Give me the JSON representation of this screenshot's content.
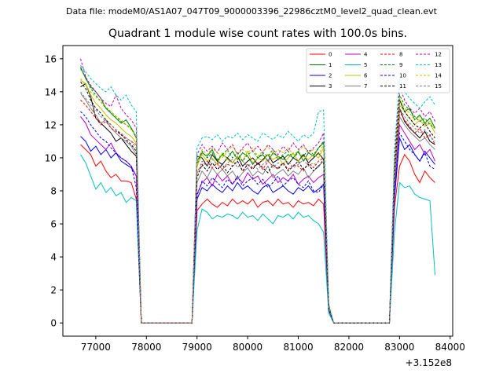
{
  "file_label": "Data file: modeM0/AS1A07_047T09_9000003396_22986cztM0_level2_quad_clean.evt",
  "chart_data": {
    "type": "line",
    "title": "Quadrant 1 module wise count rates with 100.0s bins.",
    "xlabel": "",
    "ylabel": "",
    "x_offset_label": "+3.152e8",
    "xlim": [
      76350,
      84050
    ],
    "ylim": [
      -0.8,
      16.8
    ],
    "xticks": [
      77000,
      78000,
      79000,
      80000,
      81000,
      82000,
      83000,
      84000
    ],
    "yticks": [
      0,
      2,
      4,
      6,
      8,
      10,
      12,
      14,
      16
    ],
    "x": [
      76700,
      76800,
      76900,
      77000,
      77100,
      77200,
      77300,
      77400,
      77500,
      77600,
      77700,
      77800,
      77900,
      78000,
      78900,
      79000,
      79100,
      79200,
      79300,
      79400,
      79500,
      79600,
      79700,
      79800,
      79900,
      80000,
      80100,
      80200,
      80300,
      80400,
      80500,
      80600,
      80700,
      80800,
      80900,
      81000,
      81100,
      81200,
      81300,
      81400,
      81500,
      81600,
      81700,
      81800,
      82800,
      82900,
      83000,
      83100,
      83200,
      83300,
      83400,
      83500,
      83600,
      83700
    ],
    "legend": {
      "location": "upper right",
      "columns": 4
    },
    "series": [
      {
        "name": "0",
        "color": "#ff0000",
        "style": "solid",
        "values": [
          10.8,
          10.5,
          10.2,
          9.5,
          9.8,
          9.2,
          8.8,
          9.0,
          8.6,
          8.6,
          8.5,
          7.5,
          0,
          0,
          0,
          6.8,
          7.2,
          7.5,
          7.2,
          7.0,
          7.3,
          7.1,
          7.5,
          7.2,
          7.4,
          7.2,
          7.5,
          7.0,
          7.3,
          7.4,
          7.1,
          7.5,
          7.2,
          7.3,
          7.0,
          7.4,
          7.2,
          7.3,
          7.1,
          7.5,
          7.2,
          0.8,
          0,
          0,
          0,
          7.0,
          9.5,
          10.2,
          9.8,
          9.0,
          8.5,
          9.2,
          8.8,
          8.5
        ]
      },
      {
        "name": "1",
        "color": "#008000",
        "style": "solid",
        "values": [
          15.5,
          14.8,
          14.3,
          14.0,
          13.6,
          13.0,
          12.7,
          12.4,
          12.1,
          12.3,
          11.8,
          11.2,
          0,
          0,
          0,
          9.8,
          10.3,
          10.1,
          10.5,
          9.8,
          10.2,
          10.0,
          10.4,
          9.9,
          10.3,
          10.1,
          9.6,
          10.0,
          10.2,
          9.8,
          10.3,
          10.1,
          9.9,
          10.2,
          10.0,
          10.4,
          9.8,
          10.3,
          10.1,
          10.6,
          10.9,
          1.0,
          0,
          0,
          0,
          9.5,
          13.5,
          12.8,
          13.0,
          12.3,
          12.6,
          12.1,
          12.4,
          11.8
        ]
      },
      {
        "name": "2",
        "color": "#0000ff",
        "style": "solid",
        "values": [
          11.3,
          11.0,
          10.4,
          10.7,
          10.2,
          10.5,
          10.0,
          10.3,
          9.8,
          9.6,
          9.4,
          8.9,
          0,
          0,
          0,
          7.5,
          8.2,
          8.0,
          8.4,
          8.1,
          7.9,
          8.3,
          8.0,
          8.5,
          8.1,
          8.3,
          8.0,
          7.8,
          8.2,
          8.4,
          7.9,
          8.1,
          8.3,
          8.0,
          7.8,
          8.2,
          8.0,
          8.3,
          7.9,
          8.1,
          8.4,
          0.8,
          0,
          0,
          0,
          7.5,
          11.2,
          10.5,
          10.8,
          10.2,
          9.8,
          10.4,
          10.0,
          9.6
        ]
      },
      {
        "name": "3",
        "color": "#000000",
        "style": "solid",
        "values": [
          14.3,
          14.5,
          13.7,
          12.4,
          12.1,
          11.8,
          11.5,
          11.0,
          11.2,
          10.8,
          10.4,
          10.1,
          0,
          0,
          0,
          10.1,
          10.0,
          9.5,
          10.2,
          9.8,
          9.6,
          10.0,
          9.7,
          10.1,
          9.5,
          9.8,
          10.0,
          9.6,
          9.9,
          10.2,
          9.7,
          9.9,
          10.1,
          9.6,
          10.0,
          9.8,
          10.2,
          9.7,
          10.0,
          10.3,
          9.9,
          0.9,
          0,
          0,
          0,
          8.5,
          13.0,
          12.2,
          11.8,
          11.5,
          11.2,
          11.6,
          11.0,
          10.8
        ]
      },
      {
        "name": "4",
        "color": "#bf00bf",
        "style": "solid",
        "values": [
          12.5,
          12.1,
          11.4,
          11.1,
          10.8,
          10.5,
          10.9,
          10.3,
          10.0,
          9.8,
          9.5,
          8.9,
          0,
          0,
          0,
          7.8,
          8.5,
          8.8,
          8.3,
          9.0,
          8.6,
          8.9,
          8.4,
          8.8,
          8.5,
          9.1,
          8.7,
          8.9,
          8.4,
          8.7,
          9.0,
          8.5,
          8.8,
          8.6,
          9.0,
          8.4,
          8.7,
          8.9,
          8.5,
          8.8,
          9.0,
          0.9,
          0,
          0,
          0,
          8.0,
          12.0,
          11.5,
          11.0,
          10.5,
          10.8,
          10.2,
          10.5,
          9.8
        ]
      },
      {
        "name": "5",
        "color": "#00bfbf",
        "style": "solid",
        "values": [
          10.2,
          9.7,
          8.9,
          8.1,
          8.5,
          7.9,
          8.2,
          7.7,
          7.9,
          7.3,
          7.6,
          7.4,
          0,
          0,
          0,
          5.6,
          6.9,
          6.7,
          6.3,
          6.5,
          6.4,
          6.6,
          6.5,
          6.3,
          6.7,
          6.4,
          6.5,
          6.2,
          6.6,
          6.3,
          6.0,
          6.5,
          6.4,
          6.6,
          6.3,
          6.7,
          6.4,
          6.5,
          6.2,
          6.0,
          5.5,
          0.6,
          0,
          0,
          0,
          5.5,
          8.5,
          8.2,
          8.3,
          7.8,
          7.6,
          7.5,
          7.4,
          2.9
        ]
      },
      {
        "name": "6",
        "color": "#bfbf00",
        "style": "solid",
        "values": [
          14.7,
          14.5,
          13.8,
          13.3,
          13.0,
          12.6,
          12.3,
          12.1,
          11.8,
          11.5,
          11.3,
          10.9,
          0,
          0,
          0,
          9.5,
          10.2,
          9.8,
          10.0,
          9.6,
          10.3,
          9.9,
          9.7,
          10.1,
          9.8,
          10.4,
          9.7,
          10.0,
          9.8,
          10.2,
          9.9,
          10.1,
          9.6,
          10.0,
          10.3,
          9.8,
          10.1,
          9.9,
          10.2,
          10.0,
          10.6,
          1.0,
          0,
          0,
          0,
          9.0,
          13.2,
          12.8,
          12.4,
          12.0,
          12.3,
          11.9,
          12.1,
          11.5
        ]
      },
      {
        "name": "7",
        "color": "#808080",
        "style": "solid",
        "values": [
          13.9,
          13.5,
          13.0,
          12.6,
          12.1,
          12.3,
          11.8,
          11.5,
          11.2,
          11.0,
          10.7,
          10.2,
          0,
          0,
          0,
          8.5,
          9.2,
          8.8,
          9.4,
          9.0,
          9.3,
          8.9,
          9.2,
          8.7,
          9.1,
          9.4,
          8.9,
          9.2,
          9.0,
          9.5,
          8.8,
          9.1,
          9.3,
          8.9,
          9.2,
          9.0,
          9.4,
          8.8,
          9.2,
          9.5,
          9.8,
          0.9,
          0,
          0,
          0,
          8.5,
          12.5,
          12.0,
          11.6,
          11.3,
          11.0,
          11.2,
          10.8,
          10.5
        ]
      },
      {
        "name": "8",
        "color": "#ff0000",
        "style": "dashed",
        "values": [
          13.5,
          13.2,
          12.8,
          12.4,
          12.0,
          12.2,
          11.8,
          11.6,
          11.4,
          11.2,
          11.0,
          10.8,
          0,
          0,
          0,
          9.2,
          9.5,
          9.8,
          9.4,
          9.7,
          9.3,
          9.6,
          9.5,
          9.8,
          9.2,
          9.6,
          9.4,
          9.7,
          9.3,
          9.8,
          9.5,
          9.4,
          9.7,
          9.3,
          9.6,
          9.5,
          9.2,
          9.7,
          9.4,
          9.8,
          10.0,
          1.0,
          0,
          0,
          0,
          8.8,
          12.8,
          12.3,
          11.9,
          11.5,
          11.8,
          11.2,
          11.4,
          10.8
        ]
      },
      {
        "name": "9",
        "color": "#008000",
        "style": "dashed",
        "values": [
          15.4,
          14.9,
          14.2,
          13.8,
          13.4,
          13.0,
          12.8,
          12.5,
          12.2,
          12.0,
          11.8,
          11.3,
          0,
          0,
          0,
          9.6,
          10.4,
          10.0,
          10.3,
          9.9,
          10.2,
          10.5,
          10.0,
          10.3,
          9.8,
          10.2,
          10.4,
          10.0,
          10.3,
          10.1,
          10.5,
          9.9,
          10.2,
          10.4,
          10.0,
          10.3,
          10.1,
          10.5,
          10.2,
          10.6,
          11.0,
          1.0,
          0,
          0,
          0,
          9.5,
          13.8,
          13.2,
          12.9,
          12.5,
          12.2,
          12.4,
          12.0,
          11.8
        ]
      },
      {
        "name": "10",
        "color": "#0000ff",
        "style": "dashed",
        "values": [
          12.8,
          12.5,
          12.0,
          11.6,
          11.2,
          11.0,
          10.6,
          10.3,
          10.0,
          9.8,
          9.5,
          8.2,
          0,
          0,
          0,
          7.7,
          8.6,
          8.3,
          8.8,
          8.5,
          8.2,
          8.7,
          8.4,
          8.9,
          8.3,
          8.6,
          8.8,
          8.4,
          8.7,
          8.2,
          8.5,
          8.9,
          8.3,
          8.6,
          8.8,
          8.4,
          8.2,
          8.6,
          8.0,
          7.9,
          8.4,
          0.8,
          0,
          0,
          0,
          7.8,
          11.5,
          11.0,
          10.5,
          10.2,
          9.8,
          10.3,
          9.5,
          9.3
        ]
      },
      {
        "name": "11",
        "color": "#000000",
        "style": "dashed",
        "values": [
          14.6,
          14.2,
          13.5,
          13.0,
          12.7,
          12.3,
          12.0,
          11.7,
          11.4,
          11.1,
          10.8,
          10.4,
          0,
          0,
          0,
          8.8,
          9.6,
          9.2,
          9.7,
          9.3,
          9.6,
          9.1,
          9.5,
          9.8,
          9.2,
          9.6,
          9.3,
          9.7,
          9.4,
          9.1,
          9.6,
          9.3,
          9.7,
          9.2,
          9.5,
          9.8,
          9.3,
          9.6,
          9.2,
          9.5,
          9.9,
          0.9,
          0,
          0,
          0,
          9.0,
          13.5,
          12.8,
          12.4,
          12.0,
          11.8,
          12.1,
          11.6,
          11.2
        ]
      },
      {
        "name": "12",
        "color": "#bf00bf",
        "style": "dashed",
        "values": [
          16.0,
          14.9,
          14.4,
          14.0,
          13.6,
          13.3,
          13.1,
          13.8,
          13.0,
          12.6,
          12.3,
          11.8,
          0,
          0,
          0,
          10.2,
          10.8,
          10.4,
          10.7,
          10.3,
          10.9,
          10.5,
          10.8,
          10.2,
          10.6,
          10.9,
          10.4,
          10.7,
          10.3,
          10.8,
          10.5,
          10.2,
          10.7,
          10.4,
          10.9,
          10.5,
          10.8,
          10.3,
          10.6,
          10.9,
          11.5,
          1.1,
          0,
          0,
          0,
          10.0,
          14.3,
          13.5,
          13.0,
          12.7,
          13.0,
          12.5,
          12.8,
          12.2
        ]
      },
      {
        "name": "13",
        "color": "#00bfbf",
        "style": "dashed",
        "values": [
          15.6,
          15.2,
          14.8,
          14.5,
          14.2,
          14.0,
          14.3,
          13.8,
          13.5,
          13.8,
          13.2,
          12.8,
          0,
          0,
          0,
          10.6,
          11.2,
          11.3,
          11.1,
          11.4,
          11.0,
          11.3,
          11.2,
          11.5,
          11.1,
          11.4,
          11.2,
          11.0,
          11.5,
          11.3,
          11.1,
          11.4,
          11.2,
          11.6,
          11.3,
          11.0,
          11.4,
          11.2,
          11.5,
          12.8,
          12.9,
          1.2,
          0,
          0,
          0,
          10.5,
          14.8,
          14.0,
          13.6,
          13.3,
          13.0,
          13.4,
          13.7,
          13.2
        ]
      },
      {
        "name": "14",
        "color": "#bfbf00",
        "style": "dashed",
        "values": [
          14.8,
          14.4,
          14.0,
          13.7,
          13.4,
          13.1,
          12.8,
          12.5,
          12.3,
          12.0,
          11.7,
          11.3,
          0,
          0,
          0,
          9.8,
          10.5,
          10.2,
          10.6,
          10.3,
          10.0,
          10.4,
          10.7,
          10.2,
          10.5,
          10.3,
          10.6,
          10.1,
          10.4,
          10.7,
          10.2,
          10.5,
          10.3,
          10.6,
          10.2,
          10.4,
          10.7,
          10.3,
          10.5,
          10.2,
          10.8,
          1.0,
          0,
          0,
          0,
          9.2,
          13.6,
          13.0,
          12.7,
          12.3,
          12.5,
          12.0,
          12.2,
          11.7
        ]
      },
      {
        "name": "15",
        "color": "#808080",
        "style": "dashed",
        "values": [
          14.0,
          13.6,
          13.2,
          12.9,
          12.5,
          12.2,
          12.0,
          11.7,
          11.5,
          11.2,
          11.0,
          10.6,
          0,
          0,
          0,
          9.0,
          9.8,
          9.5,
          9.9,
          9.6,
          9.3,
          9.7,
          9.9,
          9.4,
          9.8,
          9.5,
          9.7,
          9.3,
          9.6,
          9.9,
          9.4,
          9.7,
          9.5,
          9.8,
          9.4,
          9.6,
          9.9,
          9.5,
          9.7,
          9.4,
          10.0,
          0.9,
          0,
          0,
          0,
          8.8,
          13.0,
          12.5,
          12.1,
          11.8,
          11.5,
          11.7,
          11.3,
          11.0
        ]
      }
    ]
  }
}
